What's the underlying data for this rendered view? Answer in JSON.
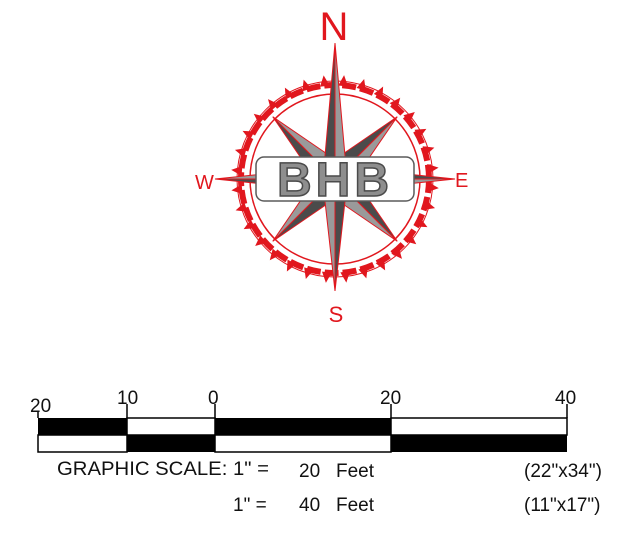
{
  "compass": {
    "north_label": "N",
    "south_label": "S",
    "east_label": "E",
    "west_label": "W",
    "logo_text": "BHB",
    "colors": {
      "ring": "#e1171e",
      "star_dark": "#4b4b4b",
      "star_light": "#9a9a9a",
      "logo_fill": "#8e8e8e",
      "logo_stroke": "#5a5a5a"
    }
  },
  "scale_bar": {
    "tick_labels": [
      "20",
      "10",
      "0",
      "20",
      "40"
    ],
    "line1": {
      "prefix": "GRAPHIC SCALE: 1\" =",
      "value": "20",
      "unit": "Feet",
      "sheet": "(22\"x34\")"
    },
    "line2": {
      "prefix": "1\" =",
      "value": "40",
      "unit": "Feet",
      "sheet": "(11\"x17\")"
    }
  }
}
